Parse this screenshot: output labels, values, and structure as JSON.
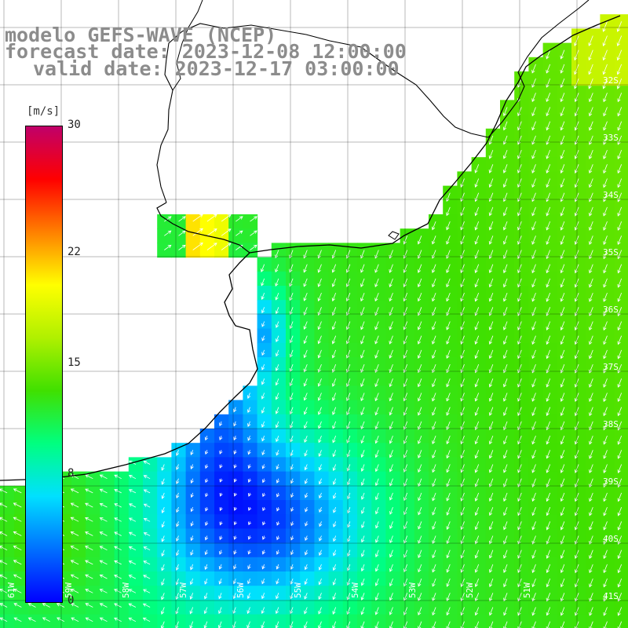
{
  "title": {
    "line1": "modelo GEFS-WAVE (NCEP)",
    "line2": "forecast date: 2023-12-08 12:00:00",
    "line3": "valid date: 2023-12-17 03:00:00"
  },
  "colorbar": {
    "unit": "[m/s]",
    "min": 0,
    "max": 30,
    "ticks": [
      {
        "value": 30,
        "label": "30"
      },
      {
        "value": 22,
        "label": "22"
      },
      {
        "value": 15,
        "label": "15"
      },
      {
        "value": 8,
        "label": "8"
      },
      {
        "value": 0,
        "label": "0"
      }
    ],
    "colors": [
      "#0000ff",
      "#0070ff",
      "#00e0ff",
      "#00ff80",
      "#40e000",
      "#b0f000",
      "#ffff00",
      "#ff8000",
      "#ff0000",
      "#c0006a"
    ]
  },
  "grid": {
    "lat_labels": [
      "32S",
      "33S",
      "34S",
      "35S",
      "36S",
      "37S",
      "38S",
      "39S",
      "40S",
      "41S"
    ],
    "lon_labels": [
      "61W",
      "59W",
      "58W",
      "57W",
      "56W",
      "55W",
      "54W",
      "53W",
      "52W",
      "51W"
    ]
  },
  "colors": {
    "land": "#ffffff",
    "coast": "#000000",
    "grid": "#000000",
    "title": "#8c8c8c",
    "arrows": "#ffffff"
  }
}
